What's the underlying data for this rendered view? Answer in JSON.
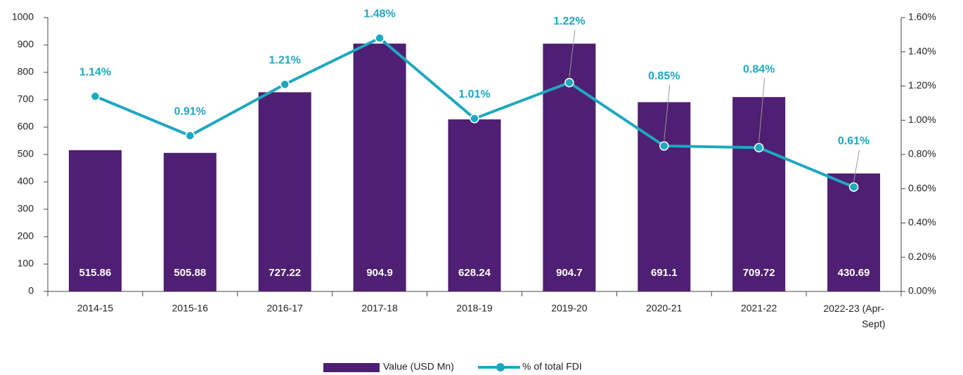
{
  "chart_data": {
    "type": "bar",
    "categories": [
      "2014-15",
      "2015-16",
      "2016-17",
      "2017-18",
      "2018-19",
      "2019-20",
      "2020-21",
      "2021-22",
      "2022-23 (Apr-Sept)"
    ],
    "series": [
      {
        "name": "Value (USD Mn)",
        "type": "bar",
        "color": "#4e1f72",
        "values": [
          515.86,
          505.88,
          727.22,
          904.9,
          628.24,
          904.7,
          691.1,
          709.72,
          430.69
        ]
      },
      {
        "name": "% of total FDI",
        "type": "line",
        "axis": "y2",
        "color": "#1ea8c0",
        "values": [
          1.14,
          0.91,
          1.21,
          1.48,
          1.01,
          1.22,
          0.85,
          0.84,
          0.61
        ],
        "value_labels": [
          "1.14%",
          "0.91%",
          "1.21%",
          "1.48%",
          "1.01%",
          "1.22%",
          "0.85%",
          "0.84%",
          "0.61%"
        ]
      }
    ],
    "ylim": [
      0,
      1000
    ],
    "yticks": [
      0,
      100,
      200,
      300,
      400,
      500,
      600,
      700,
      800,
      900,
      1000
    ],
    "y2lim": [
      0,
      1.6
    ],
    "y2ticks": [
      {
        "value": 0,
        "label": "0.00%"
      },
      {
        "value": 0.2,
        "label": "0.20%"
      },
      {
        "value": 0.4,
        "label": "0.40%"
      },
      {
        "value": 0.6,
        "label": "0.60%"
      },
      {
        "value": 0.8,
        "label": "0.80%"
      },
      {
        "value": 1.0,
        "label": "1.00%"
      },
      {
        "value": 1.2,
        "label": "1.20%"
      },
      {
        "value": 1.4,
        "label": "1.40%"
      },
      {
        "value": 1.6,
        "label": "1.60%"
      }
    ],
    "legend": "bottom"
  }
}
